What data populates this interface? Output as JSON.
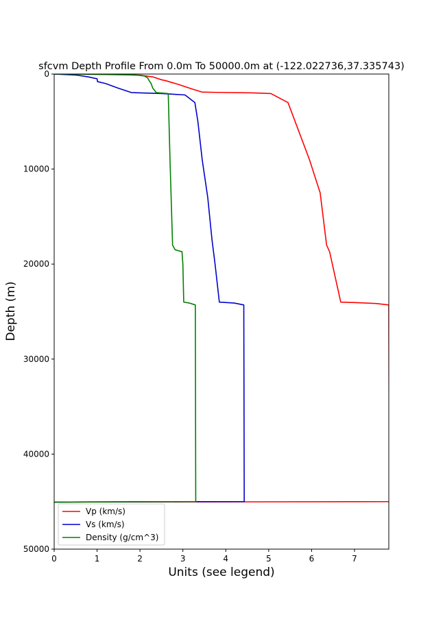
{
  "chart_data": {
    "type": "line",
    "title": "sfcvm Depth Profile From 0.0m To 50000.0m at (-122.022736,37.335743)",
    "xlabel": "Units (see legend)",
    "ylabel": "Depth (m)",
    "xlim": [
      0,
      7.8
    ],
    "ylim": [
      50000,
      0
    ],
    "y_inverted": true,
    "xticks": [
      0,
      1,
      2,
      3,
      4,
      5,
      6,
      7
    ],
    "yticks": [
      0,
      10000,
      20000,
      30000,
      40000,
      50000
    ],
    "grid": false,
    "legend_position": "lower-left",
    "series": [
      {
        "name": "Vp (km/s)",
        "color": "#ff0000",
        "points": [
          [
            0.0,
            0
          ],
          [
            1.5,
            40
          ],
          [
            2.0,
            120
          ],
          [
            2.3,
            300
          ],
          [
            2.5,
            600
          ],
          [
            2.6,
            700
          ],
          [
            2.9,
            1100
          ],
          [
            3.2,
            1550
          ],
          [
            3.45,
            1900
          ],
          [
            3.8,
            1930
          ],
          [
            4.6,
            1980
          ],
          [
            5.05,
            2050
          ],
          [
            5.45,
            3000
          ],
          [
            5.7,
            6000
          ],
          [
            5.95,
            9000
          ],
          [
            6.2,
            12500
          ],
          [
            6.35,
            18000
          ],
          [
            6.42,
            18700
          ],
          [
            6.68,
            24000
          ],
          [
            7.0,
            24050
          ],
          [
            7.5,
            24150
          ],
          [
            7.8,
            24300
          ],
          [
            7.81,
            45000
          ],
          [
            7.0,
            45010
          ],
          [
            3.0,
            45030
          ],
          [
            0.0,
            45050
          ]
        ]
      },
      {
        "name": "Vs (km/s)",
        "color": "#0000cc",
        "points": [
          [
            0.0,
            0
          ],
          [
            0.5,
            100
          ],
          [
            0.8,
            300
          ],
          [
            1.0,
            500
          ],
          [
            1.01,
            800
          ],
          [
            1.2,
            1000
          ],
          [
            1.5,
            1500
          ],
          [
            1.8,
            1950
          ],
          [
            2.5,
            2050
          ],
          [
            3.05,
            2200
          ],
          [
            3.28,
            3000
          ],
          [
            3.35,
            5000
          ],
          [
            3.45,
            9000
          ],
          [
            3.58,
            13000
          ],
          [
            3.68,
            17500
          ],
          [
            3.7,
            18200
          ],
          [
            3.75,
            20000
          ],
          [
            3.85,
            24000
          ],
          [
            4.2,
            24100
          ],
          [
            4.42,
            24300
          ],
          [
            4.43,
            45000
          ],
          [
            3.0,
            45010
          ],
          [
            1.0,
            45030
          ],
          [
            0.0,
            45050
          ]
        ]
      },
      {
        "name": "Density (g/cm^3)",
        "color": "#008000",
        "points": [
          [
            0.0,
            0
          ],
          [
            1.0,
            30
          ],
          [
            1.9,
            100
          ],
          [
            2.1,
            200
          ],
          [
            2.18,
            400
          ],
          [
            2.2,
            600
          ],
          [
            2.26,
            1000
          ],
          [
            2.3,
            1500
          ],
          [
            2.38,
            1950
          ],
          [
            2.5,
            2000
          ],
          [
            2.65,
            2050
          ],
          [
            2.66,
            2200
          ],
          [
            2.7,
            9000
          ],
          [
            2.74,
            15000
          ],
          [
            2.76,
            18000
          ],
          [
            2.82,
            18500
          ],
          [
            2.98,
            18700
          ],
          [
            3.0,
            20000
          ],
          [
            3.02,
            24000
          ],
          [
            3.15,
            24100
          ],
          [
            3.29,
            24300
          ],
          [
            3.3,
            45000
          ],
          [
            2.0,
            45010
          ],
          [
            0.0,
            45050
          ]
        ]
      }
    ]
  }
}
